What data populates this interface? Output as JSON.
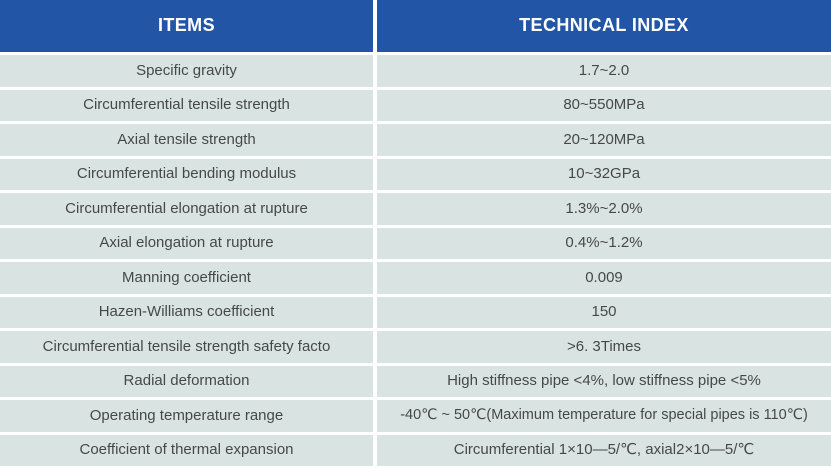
{
  "table": {
    "headers": [
      "ITEMS",
      "TECHNICAL INDEX"
    ],
    "rows": [
      {
        "item": "Specific gravity",
        "value": "1.7~2.0"
      },
      {
        "item": "Circumferential tensile strength",
        "value": "80~550MPa"
      },
      {
        "item": "Axial tensile strength",
        "value": "20~120MPa"
      },
      {
        "item": "Circumferential bending modulus",
        "value": "10~32GPa"
      },
      {
        "item": "Circumferential elongation at rupture",
        "value": "1.3%~2.0%"
      },
      {
        "item": "Axial elongation at rupture",
        "value": "0.4%~1.2%"
      },
      {
        "item": "Manning coefficient",
        "value": "0.009"
      },
      {
        "item": "Hazen-Williams coefficient",
        "value": "150"
      },
      {
        "item": "Circumferential tensile strength safety facto",
        "value": ">6. 3Times"
      },
      {
        "item": "Radial deformation",
        "value": "High stiffness pipe <4%, low stiffness pipe <5%"
      },
      {
        "item": "Operating temperature range",
        "value": "-40℃ ~ 50℃(Maximum temperature for special pipes is 110℃)"
      },
      {
        "item": "Coefficient of thermal expansion",
        "value": "Circumferential 1×10—5/℃, axial2×10—5/℃"
      }
    ]
  },
  "colors": {
    "header_bg": "#2355a6",
    "header_text": "#ffffff",
    "row_bg": "#d9e4e2",
    "gutter": "#ffffff",
    "text": "#45484a"
  }
}
